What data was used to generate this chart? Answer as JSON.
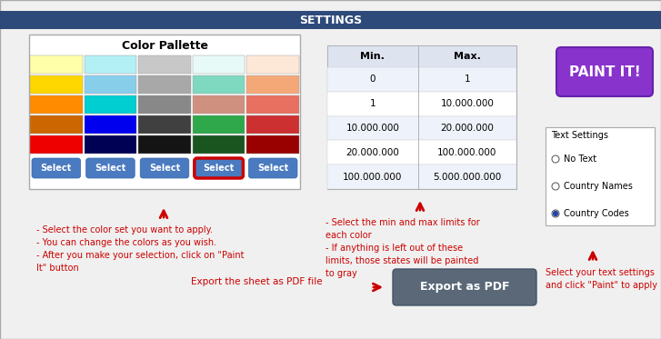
{
  "title": "SETTINGS",
  "title_bg": "#2e4a7a",
  "title_color": "white",
  "bg_color": "#f0f0f0",
  "palette_title": "Color Pallette",
  "palette_colors": [
    [
      "#ffffaa",
      "#b2f0f5",
      "#c8c8c8",
      "#e8faf8",
      "#fde8d8"
    ],
    [
      "#ffd700",
      "#87ceeb",
      "#a8a8a8",
      "#7fd8c0",
      "#f4a878"
    ],
    [
      "#ff8c00",
      "#00ced1",
      "#888888",
      "#d09080",
      "#e87060"
    ],
    [
      "#cc6600",
      "#0000ee",
      "#404040",
      "#2ea84a",
      "#cc3030"
    ],
    [
      "#ee0000",
      "#000055",
      "#141414",
      "#1a5520",
      "#990000"
    ]
  ],
  "selected_col": 3,
  "select_button_color": "#4a7abf",
  "select_button_text": "Select",
  "table_headers": [
    "Min.",
    "Max."
  ],
  "table_rows": [
    [
      "0",
      "1"
    ],
    [
      "1",
      "10.000.000"
    ],
    [
      "10.000.000",
      "20.000.000"
    ],
    [
      "20.000.000",
      "100.000.000"
    ],
    [
      "100.000.000",
      "5.000.000.000"
    ]
  ],
  "paint_button_color": "#8833cc",
  "paint_button_text": "PAINT IT!",
  "text_settings_label": "Text Settings",
  "radio_options": [
    "No Text",
    "Country Names",
    "Country Codes"
  ],
  "radio_selected": 2,
  "export_label": "Export the sheet as PDF file",
  "export_button_text": "Export as PDF",
  "export_button_color": "#5a6878",
  "instructions_left": "- Select the color set you want to apply.\n- You can change the colors as you wish.\n- After you make your selection, click on \"Paint\nIt\" button",
  "instructions_mid": "- Select the min and max limits for\neach color\n- If anything is left out of these\nlimits, those states will be painted\nto gray",
  "instructions_right": "Select your text settings\nand click \"Paint\" to apply",
  "arrow_color": "#cc0000"
}
